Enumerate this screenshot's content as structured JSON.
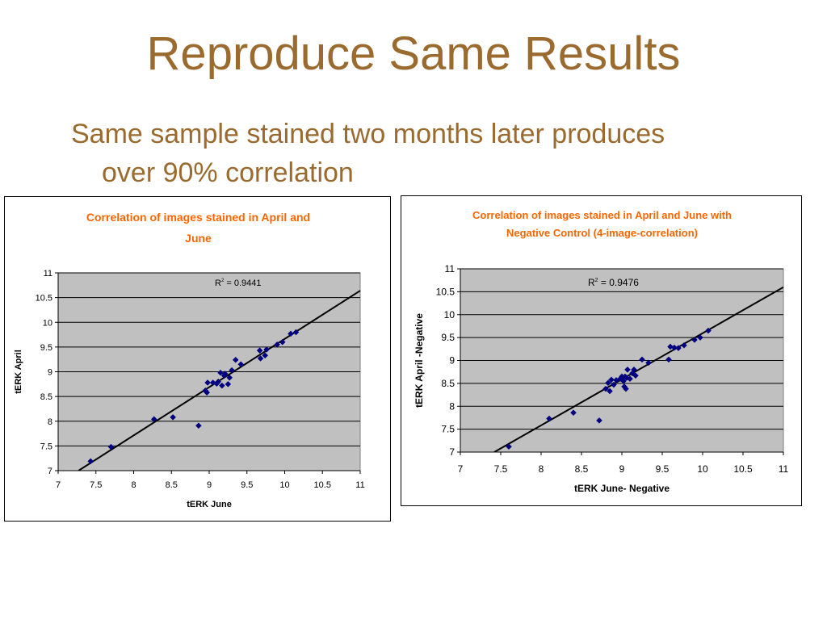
{
  "slide": {
    "title": "Reproduce Same Results",
    "subtitle": "Same sample stained two months later produces over 90% correlation"
  },
  "colors": {
    "title": "#9a6a2e",
    "chart_title": "#ff6600",
    "plot_bg": "#c0c0c0",
    "marker": "#000080",
    "trend": "#000000"
  },
  "chart_data": [
    {
      "type": "scatter",
      "title": "Correlation of images stained in April and June",
      "title_lines": [
        "Correlation of images stained in April and",
        "June"
      ],
      "xlabel": "tERK June",
      "ylabel": "tERK April",
      "xlim": [
        7,
        11
      ],
      "ylim": [
        7,
        11
      ],
      "xticks": [
        "7",
        "7.5",
        "8",
        "8.5",
        "9",
        "9.5",
        "10",
        "10.5",
        "11"
      ],
      "yticks": [
        "7",
        "7.5",
        "8",
        "8.5",
        "9",
        "9.5",
        "10",
        "10.5",
        "11"
      ],
      "grid": "horizontal",
      "marker": "diamond",
      "trendline": {
        "x": [
          7.27,
          11.0
        ],
        "y": [
          7.0,
          10.64
        ]
      },
      "r2_label": "= 0.9441",
      "points": [
        [
          7.43,
          7.19
        ],
        [
          7.7,
          7.48
        ],
        [
          8.27,
          8.04
        ],
        [
          8.52,
          8.08
        ],
        [
          8.86,
          7.91
        ],
        [
          8.95,
          8.62
        ],
        [
          8.97,
          8.58
        ],
        [
          8.98,
          8.78
        ],
        [
          9.05,
          8.78
        ],
        [
          9.1,
          8.76
        ],
        [
          9.12,
          8.8
        ],
        [
          9.15,
          8.98
        ],
        [
          9.17,
          8.72
        ],
        [
          9.2,
          8.92
        ],
        [
          9.21,
          8.96
        ],
        [
          9.25,
          8.75
        ],
        [
          9.27,
          8.88
        ],
        [
          9.3,
          9.03
        ],
        [
          9.35,
          9.24
        ],
        [
          9.42,
          9.15
        ],
        [
          9.67,
          9.43
        ],
        [
          9.68,
          9.27
        ],
        [
          9.74,
          9.33
        ],
        [
          9.76,
          9.45
        ],
        [
          9.9,
          9.55
        ],
        [
          9.97,
          9.6
        ],
        [
          10.08,
          9.77
        ],
        [
          10.15,
          9.8
        ]
      ]
    },
    {
      "type": "scatter",
      "title": "Correlation of images stained in April and June with Negative Control (4-image-correlation)",
      "title_lines": [
        "Correlation of images stained in April and June with",
        "Negative Control (4-image-correlation)"
      ],
      "xlabel": "tERK June- Negative",
      "ylabel": "tERK April -Negative",
      "xlim": [
        7,
        11
      ],
      "ylim": [
        7,
        11
      ],
      "xticks": [
        "7",
        "7.5",
        "8",
        "8.5",
        "9",
        "9.5",
        "10",
        "10.5",
        "11"
      ],
      "yticks": [
        "7",
        "7.5",
        "8",
        "8.5",
        "9",
        "9.5",
        "10",
        "10.5",
        "11"
      ],
      "grid": "horizontal",
      "marker": "diamond",
      "trendline": {
        "x": [
          7.42,
          11.0
        ],
        "y": [
          7.0,
          10.6
        ]
      },
      "r2_label": "= 0.9476",
      "points": [
        [
          7.6,
          7.12
        ],
        [
          8.1,
          7.73
        ],
        [
          8.4,
          7.86
        ],
        [
          8.72,
          7.69
        ],
        [
          8.8,
          8.38
        ],
        [
          8.83,
          8.51
        ],
        [
          8.85,
          8.33
        ],
        [
          8.87,
          8.58
        ],
        [
          8.9,
          8.47
        ],
        [
          8.93,
          8.57
        ],
        [
          8.98,
          8.6
        ],
        [
          9.0,
          8.65
        ],
        [
          9.02,
          8.55
        ],
        [
          9.03,
          8.43
        ],
        [
          9.04,
          8.65
        ],
        [
          9.05,
          8.38
        ],
        [
          9.06,
          8.62
        ],
        [
          9.07,
          8.8
        ],
        [
          9.1,
          8.6
        ],
        [
          9.13,
          8.72
        ],
        [
          9.15,
          8.8
        ],
        [
          9.17,
          8.67
        ],
        [
          9.25,
          9.02
        ],
        [
          9.33,
          8.95
        ],
        [
          9.58,
          9.02
        ],
        [
          9.6,
          9.3
        ],
        [
          9.65,
          9.28
        ],
        [
          9.7,
          9.27
        ],
        [
          9.77,
          9.33
        ],
        [
          9.9,
          9.45
        ],
        [
          9.97,
          9.5
        ],
        [
          10.07,
          9.65
        ]
      ]
    }
  ]
}
